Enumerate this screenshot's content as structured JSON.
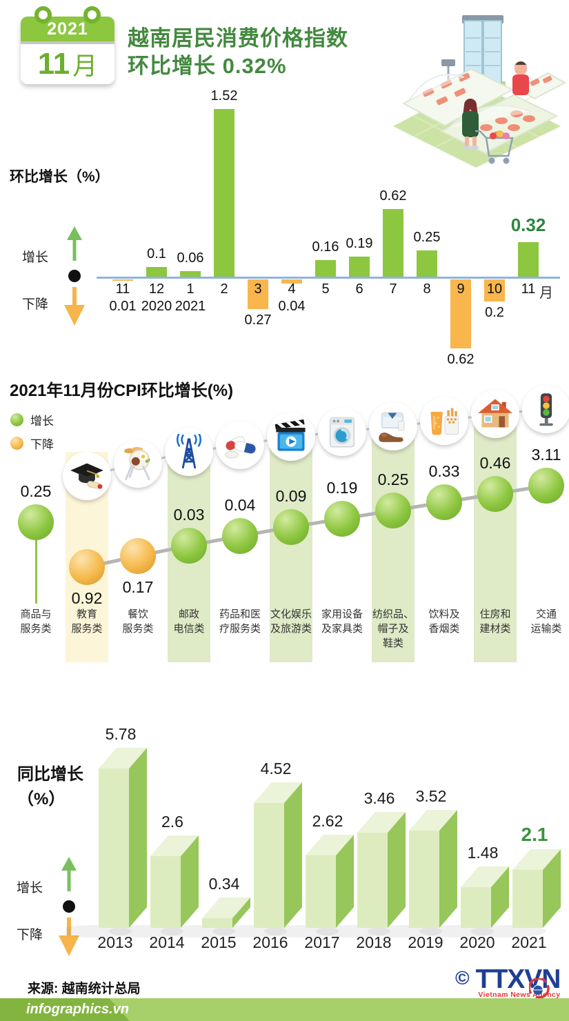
{
  "header": {
    "calendar_year": "2021",
    "calendar_month": "11",
    "calendar_month_suffix": "月",
    "title_line1": "越南居民消费价格指数",
    "title_line2": "环比增长 0.32%"
  },
  "colors": {
    "green": "#8dc63f",
    "orange": "#f8b64c",
    "title_green": "#43893f",
    "highlight_green": "#2e8540",
    "axis_blue": "#8fb3e0",
    "band_green": "#dfeac6",
    "band_yellow": "#fdf5d8",
    "logo_blue": "#1f3e95",
    "logo_red": "#e0393f"
  },
  "chart_data": [
    {
      "type": "bar",
      "title": "环比增长（%）",
      "axis_unit": "月",
      "legend": {
        "up": "增长",
        "down": "下降"
      },
      "categories": [
        "11",
        "12",
        "1",
        "2",
        "3",
        "4",
        "5",
        "6",
        "7",
        "8",
        "9",
        "10",
        "11"
      ],
      "sub_labels": [
        "",
        "2020",
        "2021",
        "",
        "",
        "",
        "",
        "",
        "",
        "",
        "",
        "",
        ""
      ],
      "values": [
        -0.01,
        0.1,
        0.06,
        1.52,
        -0.27,
        -0.04,
        0.16,
        0.19,
        0.62,
        0.25,
        -0.62,
        -0.2,
        0.32
      ],
      "value_labels": [
        "0.01",
        "0.1",
        "0.06",
        "1.52",
        "0.27",
        "0.04",
        "0.16",
        "0.19",
        "0.62",
        "0.25",
        "0.62",
        "0.2",
        "0.32"
      ],
      "highlight_last": true
    },
    {
      "type": "scatter",
      "title": "2021年11月份CPI环比增长(%)",
      "legend": {
        "up": "增长",
        "down": "下降"
      },
      "points": [
        {
          "label": "商品与服务类",
          "label_lines": [
            "商品与",
            "服务类"
          ],
          "value": 0.25,
          "display": "0.25",
          "direction": "up",
          "icon": "",
          "band": ""
        },
        {
          "label": "教育服务类",
          "label_lines": [
            "教育",
            "服务类"
          ],
          "value": -0.92,
          "display": "0.92",
          "direction": "down",
          "icon": "graduation-cap-icon",
          "band": "yellow"
        },
        {
          "label": "餐饮服务类",
          "label_lines": [
            "餐饮",
            "服务类"
          ],
          "value": -0.17,
          "display": "0.17",
          "direction": "down",
          "icon": "dining-icon",
          "band": ""
        },
        {
          "label": "邮政电信类",
          "label_lines": [
            "邮政",
            "电信类"
          ],
          "value": 0.03,
          "display": "0.03",
          "direction": "up",
          "icon": "telecom-tower-icon",
          "band": "green"
        },
        {
          "label": "药品和医疗服务类",
          "label_lines": [
            "药品和医",
            "疗服务类"
          ],
          "value": 0.04,
          "display": "0.04",
          "direction": "up",
          "icon": "medicine-icon",
          "band": ""
        },
        {
          "label": "文化娱乐及旅游类",
          "label_lines": [
            "文化娱乐",
            "及旅游类"
          ],
          "value": 0.09,
          "display": "0.09",
          "direction": "up",
          "icon": "cinema-icon",
          "band": "green"
        },
        {
          "label": "家用设备及家具类",
          "label_lines": [
            "家用设备",
            "及家具类"
          ],
          "value": 0.19,
          "display": "0.19",
          "direction": "up",
          "icon": "washing-machine-icon",
          "band": ""
        },
        {
          "label": "纺织品、帽子及鞋类",
          "label_lines": [
            "纺织品、",
            "帽子及",
            "鞋类"
          ],
          "value": 0.25,
          "display": "0.25",
          "direction": "up",
          "icon": "apparel-icon",
          "band": "green"
        },
        {
          "label": "饮料及香烟类",
          "label_lines": [
            "饮料及",
            "香烟类"
          ],
          "value": 0.33,
          "display": "0.33",
          "direction": "up",
          "icon": "beverage-tobacco-icon",
          "band": ""
        },
        {
          "label": "住房和建材类",
          "label_lines": [
            "住房和",
            "建材类"
          ],
          "value": 0.46,
          "display": "0.46",
          "direction": "up",
          "icon": "house-icon",
          "band": "green"
        },
        {
          "label": "交通运输类",
          "label_lines": [
            "交通",
            "运输类"
          ],
          "value": 3.11,
          "display": "3.11",
          "direction": "up",
          "icon": "traffic-light-icon",
          "band": ""
        }
      ]
    },
    {
      "type": "bar",
      "style": "3d",
      "title": "同比增长（%）",
      "title_lines": [
        "同比增长",
        "（%）"
      ],
      "legend": {
        "up": "增长",
        "down": "下降"
      },
      "categories": [
        "2013",
        "2014",
        "2015",
        "2016",
        "2017",
        "2018",
        "2019",
        "2020",
        "2021"
      ],
      "values": [
        5.78,
        2.6,
        0.34,
        4.52,
        2.62,
        3.46,
        3.52,
        1.48,
        2.1
      ],
      "value_labels": [
        "5.78",
        "2.6",
        "0.34",
        "4.52",
        "2.62",
        "3.46",
        "3.52",
        "1.48",
        "2.1"
      ],
      "highlight_last": true
    }
  ],
  "footer": {
    "source": "来源: 越南统计总局",
    "copyright_symbol": "©",
    "agency_abbr": "TTXVN",
    "agency_name": "Vietnam News Agency",
    "website": "infographics.vn"
  }
}
